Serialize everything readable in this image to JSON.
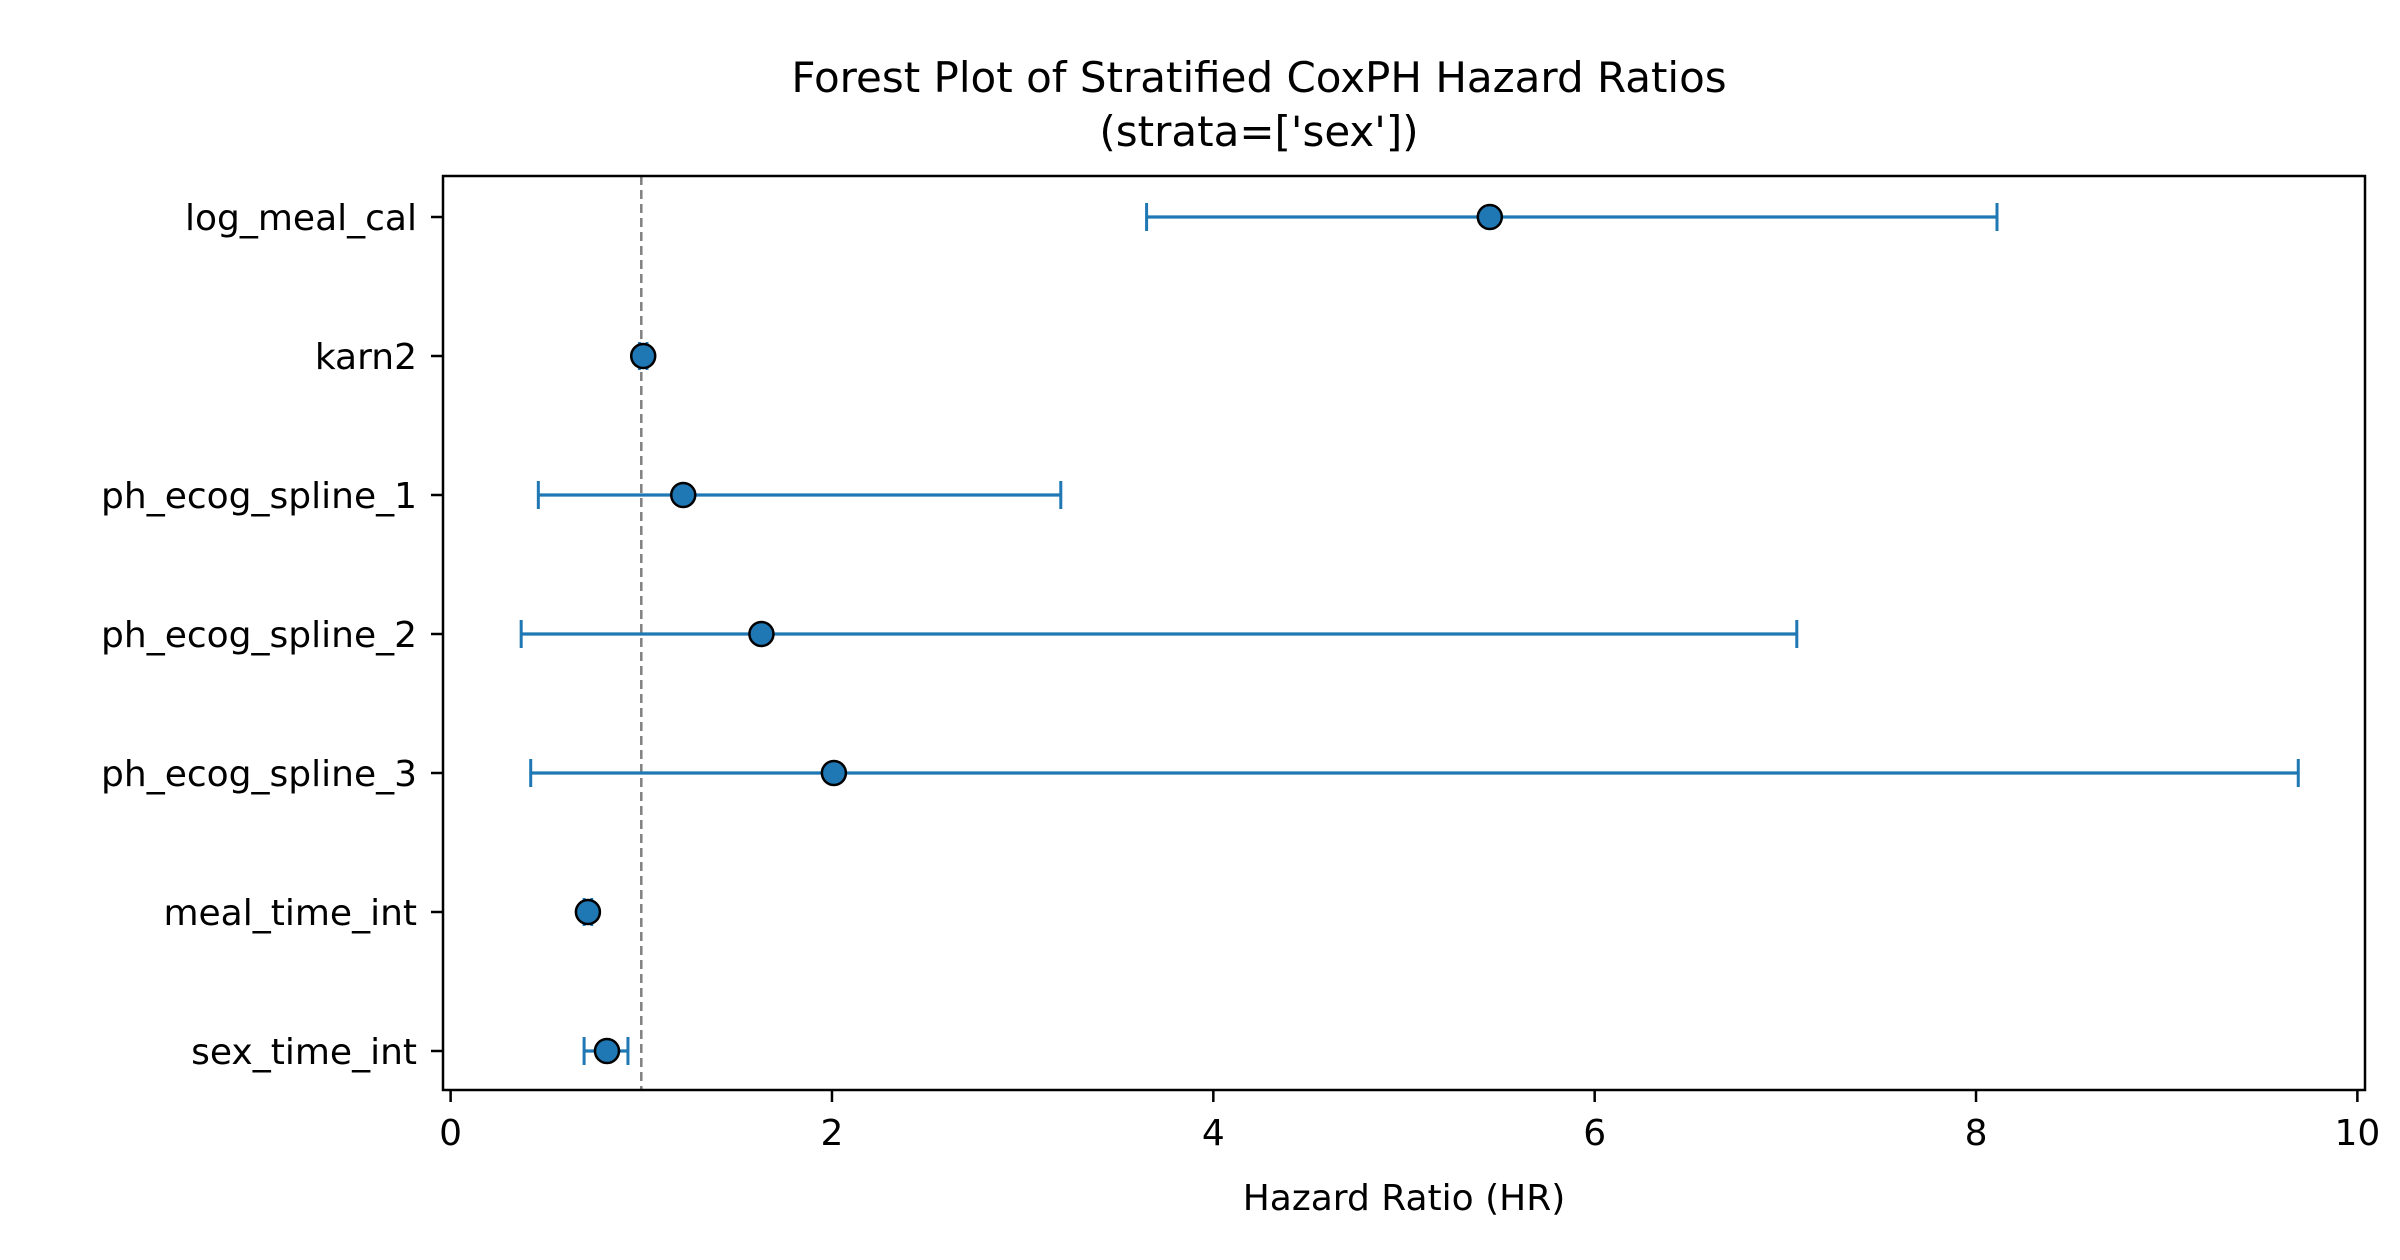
{
  "chart_data": {
    "type": "forest",
    "title": "Forest Plot of Stratified CoxPH Hazard Ratios",
    "subtitle": "(strata=['sex'])",
    "xlabel": "Hazard Ratio (HR)",
    "ylabel": "",
    "xlim": [
      -0.04,
      10.04
    ],
    "xticks": [
      0,
      2,
      4,
      6,
      8,
      10
    ],
    "xtick_labels": [
      "0",
      "2",
      "4",
      "6",
      "8",
      "10"
    ],
    "reference_line": 1.0,
    "grid": false,
    "colors": {
      "series": "#1f77b4",
      "marker_edge": "#000000",
      "reference": "#808080"
    },
    "points": [
      {
        "label": "log_meal_cal",
        "hr": 5.45,
        "lower": 3.65,
        "upper": 8.11
      },
      {
        "label": "karn2",
        "hr": 1.01,
        "lower": 0.99,
        "upper": 1.03
      },
      {
        "label": "ph_ecog_spline_1",
        "hr": 1.22,
        "lower": 0.46,
        "upper": 3.2
      },
      {
        "label": "ph_ecog_spline_2",
        "hr": 1.63,
        "lower": 0.37,
        "upper": 7.06
      },
      {
        "label": "ph_ecog_spline_3",
        "hr": 2.01,
        "lower": 0.42,
        "upper": 9.69
      },
      {
        "label": "meal_time_int",
        "hr": 0.72,
        "lower": 0.7,
        "upper": 0.74
      },
      {
        "label": "sex_time_int",
        "hr": 0.82,
        "lower": 0.7,
        "upper": 0.93
      }
    ]
  }
}
